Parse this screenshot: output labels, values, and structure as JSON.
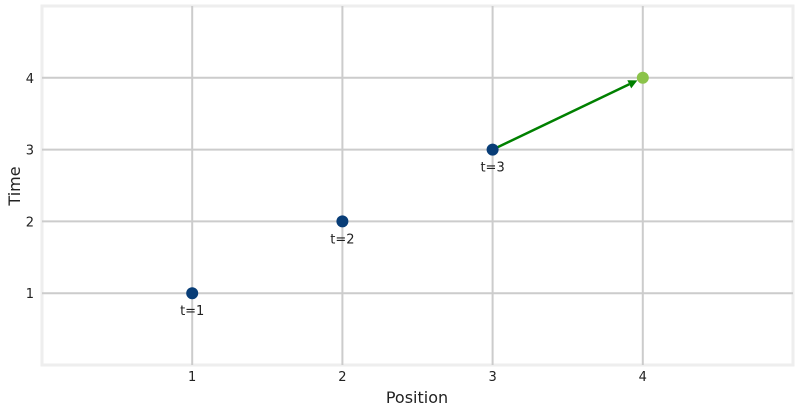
{
  "chart_data": {
    "type": "scatter",
    "xlabel": "Position",
    "ylabel": "Time",
    "xlim": [
      0,
      5
    ],
    "ylim": [
      0,
      5
    ],
    "xticks": [
      1,
      2,
      3,
      4
    ],
    "yticks": [
      1,
      2,
      3,
      4
    ],
    "grid": true,
    "points": [
      {
        "x": 1,
        "y": 1,
        "label": "t=1",
        "color": "#083d77"
      },
      {
        "x": 2,
        "y": 2,
        "label": "t=2",
        "color": "#083d77"
      },
      {
        "x": 3,
        "y": 3,
        "label": "t=3",
        "color": "#083d77"
      },
      {
        "x": 4,
        "y": 4,
        "label": "",
        "color": "#8bc34a"
      }
    ],
    "arrow": {
      "from": {
        "x": 3,
        "y": 3
      },
      "to": {
        "x": 4,
        "y": 4
      },
      "color": "#008000"
    }
  }
}
